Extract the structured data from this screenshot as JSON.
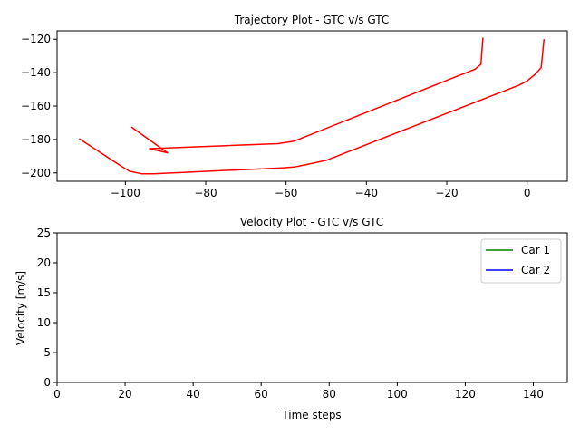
{
  "chart_data": [
    {
      "type": "line",
      "title": "Trajectory Plot - GTC v/s GTC",
      "xlabel": "",
      "ylabel": "",
      "xlim": [
        -117,
        10
      ],
      "ylim": [
        -205,
        -115
      ],
      "xticks": [
        -100,
        -80,
        -60,
        -40,
        -20,
        0
      ],
      "yticks": [
        -200,
        -180,
        -160,
        -140,
        -120
      ],
      "xtick_labels": [
        "−100",
        "−80",
        "−60",
        "−40",
        "−20",
        "0"
      ],
      "ytick_labels": [
        "−200",
        "−180",
        "−160",
        "−140",
        "−120"
      ],
      "grid": false,
      "series": [
        {
          "color": "#ff0000",
          "points": [
            [
              -11,
              -119
            ],
            [
              -11.5,
              -135
            ],
            [
              -13,
              -138
            ],
            [
              -58,
              -181
            ],
            [
              -62,
              -182.5
            ],
            [
              -94,
              -185.5
            ],
            [
              -89.5,
              -188
            ],
            [
              -98.5,
              -172.5
            ]
          ]
        },
        {
          "color": "#ff0000",
          "points": [
            [
              4.2,
              -120
            ],
            [
              3.5,
              -137
            ],
            [
              2,
              -141
            ],
            [
              0,
              -145
            ],
            [
              -2,
              -147.5
            ],
            [
              -50,
              -192.5
            ],
            [
              -55,
              -195
            ],
            [
              -58,
              -196.5
            ],
            [
              -61,
              -197
            ],
            [
              -93,
              -200.5
            ],
            [
              -96,
              -200.5
            ],
            [
              -99,
              -199
            ],
            [
              -101,
              -196
            ],
            [
              -111.5,
              -179.5
            ]
          ]
        }
      ]
    },
    {
      "type": "line",
      "title": "Velocity Plot - GTC v/s GTC",
      "xlabel": "Time steps",
      "ylabel": "Velocity [m/s]",
      "xlim": [
        0,
        150
      ],
      "ylim": [
        0,
        25
      ],
      "xticks": [
        0,
        20,
        40,
        60,
        80,
        100,
        120,
        140
      ],
      "yticks": [
        0,
        5,
        10,
        15,
        20,
        25
      ],
      "xtick_labels": [
        "0",
        "20",
        "40",
        "60",
        "80",
        "100",
        "120",
        "140"
      ],
      "ytick_labels": [
        "0",
        "5",
        "10",
        "15",
        "20",
        "25"
      ],
      "grid": false,
      "legend_position": "top-right",
      "series": [
        {
          "name": "Car 1",
          "color": "#008000",
          "points": []
        },
        {
          "name": "Car 2",
          "color": "#0000ff",
          "points": []
        }
      ]
    }
  ]
}
